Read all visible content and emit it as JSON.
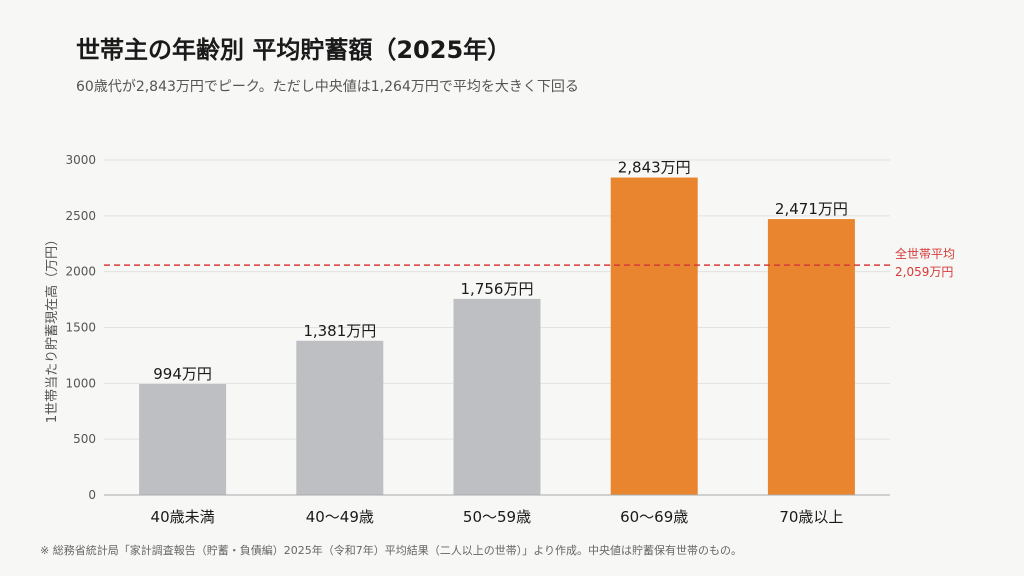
{
  "title": "世帯主の年齢別 平均貯蓄額（2025年）",
  "subtitle": "60歳代が2,843万円でピーク。ただし中央値は1,264万円で平均を大きく下回る",
  "footnote": "※ 総務省統計局「家計調査報告（貯蓄・負債編）2025年（令和7年）平均結果（二人以上の世帯）」より作成。中央値は貯蓄保有世帯のもの。",
  "chart_data": {
    "type": "bar",
    "title": "世帯主の年齢別 平均貯蓄額（2025年）",
    "ylabel": "1世帯当たり貯蓄現在高（万円）",
    "xlabel": "",
    "ylim": [
      0,
      3000
    ],
    "yticks": [
      0,
      500,
      1000,
      1500,
      2000,
      2500,
      3000
    ],
    "categories": [
      "40歳未満",
      "40〜49歳",
      "50〜59歳",
      "60〜69歳",
      "70歳以上"
    ],
    "values": [
      994,
      1381,
      1756,
      2843,
      2471
    ],
    "data_labels": [
      "994万円",
      "1,381万円",
      "1,756万円",
      "2,843万円",
      "2,471万円"
    ],
    "highlight": [
      false,
      false,
      false,
      true,
      true
    ],
    "grid": true,
    "colors": {
      "normal": "#bdbfc2",
      "highlight": "#e8852e",
      "reference": "#d63b3b"
    },
    "reference_line": {
      "value": 2059,
      "label_line1": "全世帯平均",
      "label_line2": "2,059万円"
    }
  }
}
